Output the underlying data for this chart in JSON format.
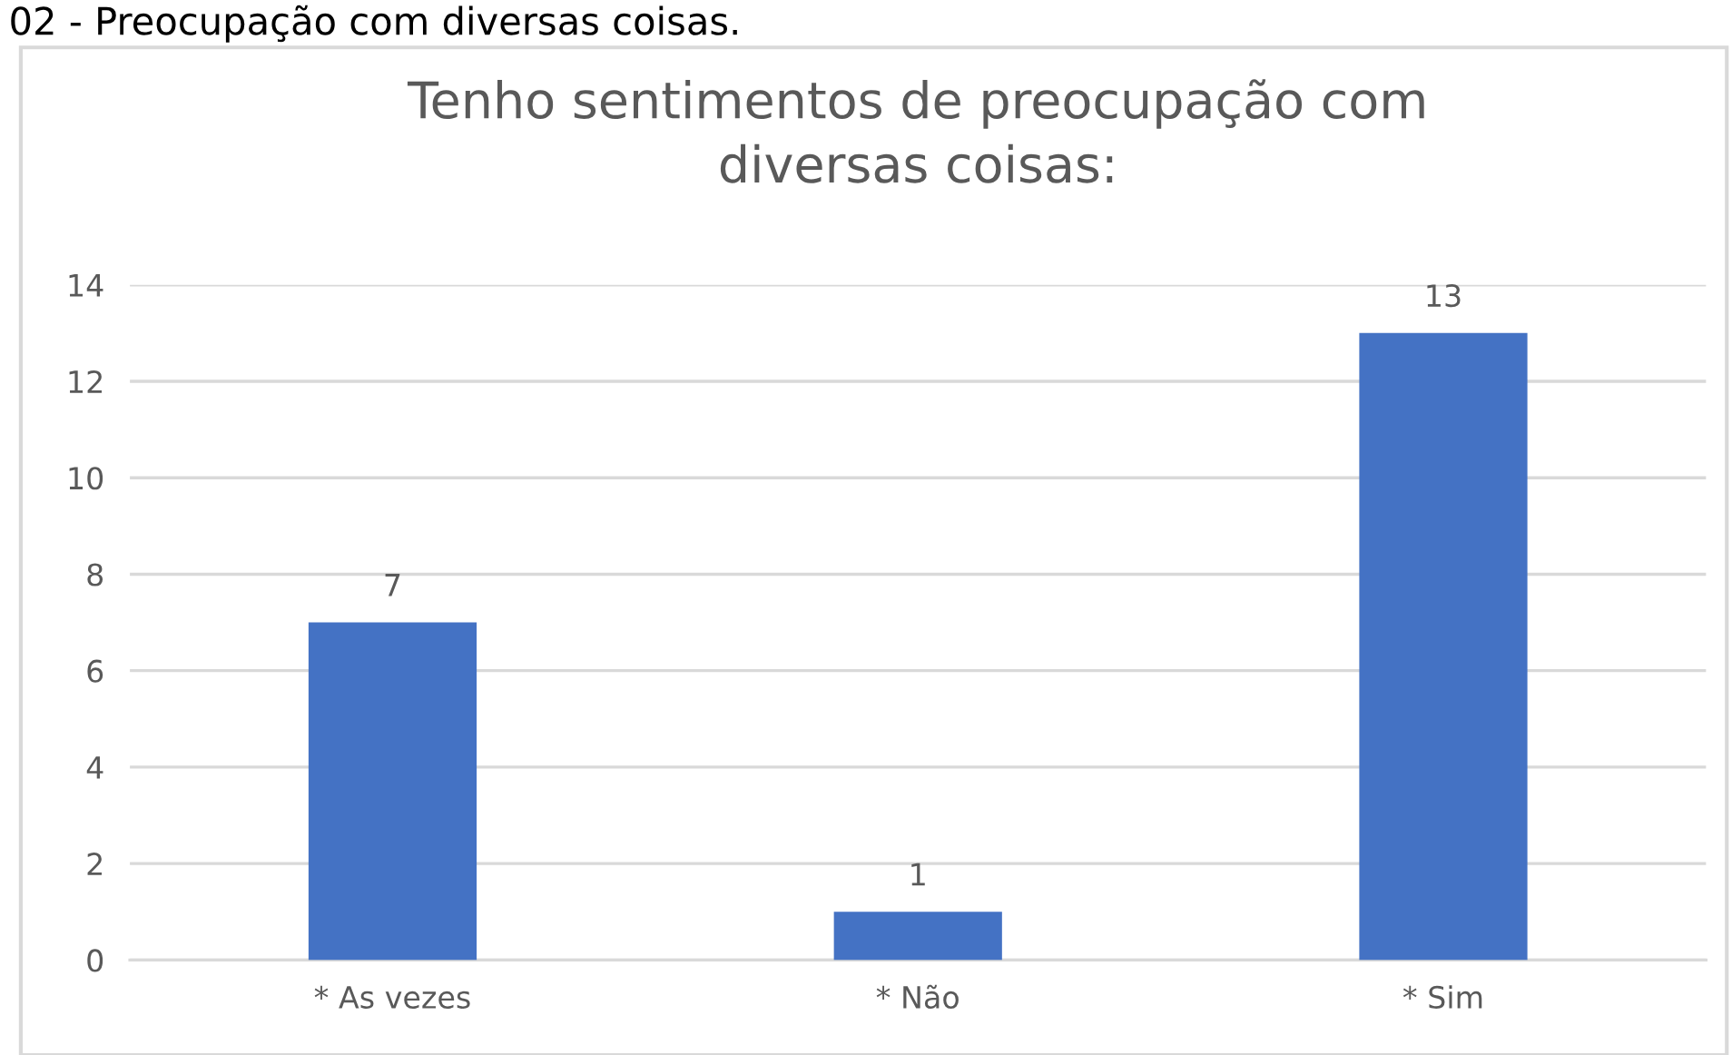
{
  "chart_data": {
    "type": "bar",
    "title": "Tenho sentimentos de preocupação com\ndiversas coisas:",
    "annotations": [
      "02 - Preocupação com diversas coisas."
    ],
    "categories": [
      "* As vezes",
      "* Não",
      "* Sim"
    ],
    "values": [
      7,
      1,
      13
    ],
    "color": "#4472c4",
    "data_labels": true,
    "ylim": [
      0,
      14
    ],
    "yticks": [
      0,
      2,
      4,
      6,
      8,
      10,
      12,
      14
    ],
    "grid": "y",
    "legend": false
  }
}
